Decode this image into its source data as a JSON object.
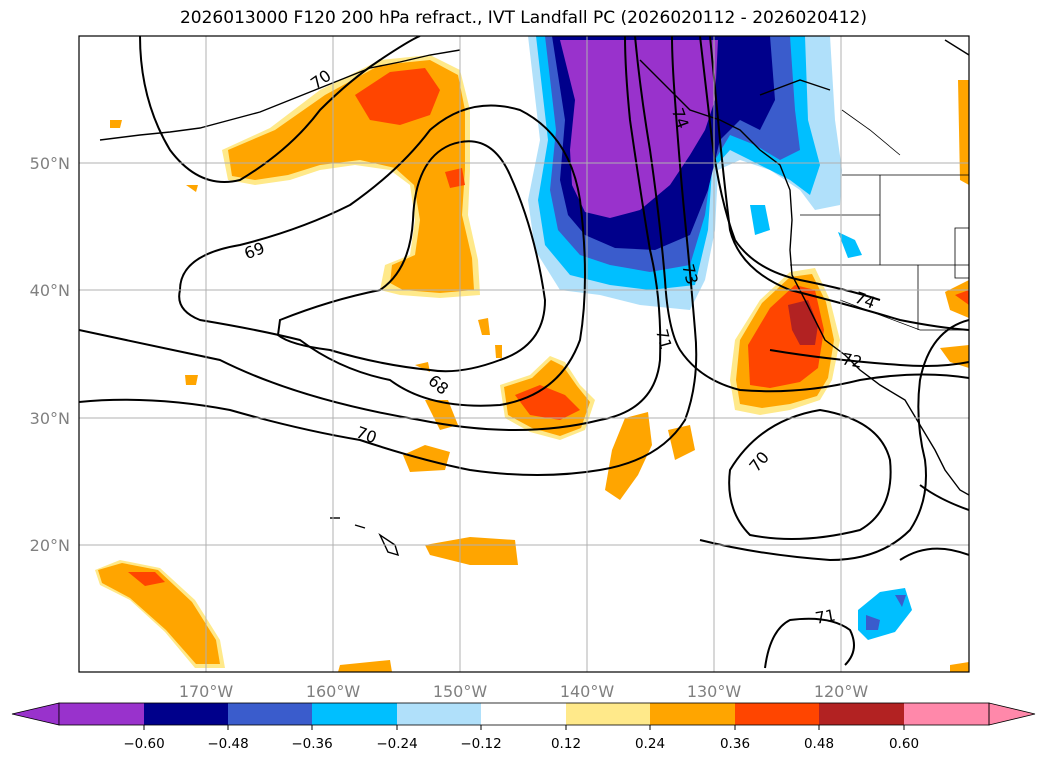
{
  "title": "2026013000 F120 200 hPa refract., IVT Landfall PC (2026020112 - 2026020412)",
  "map": {
    "lat_labels": [
      "50°N",
      "40°N",
      "30°N",
      "20°N"
    ],
    "lon_labels": [
      "170°W",
      "160°W",
      "150°W",
      "140°W",
      "130°W",
      "120°W"
    ],
    "gridlines": true
  },
  "contours": {
    "variable": "200 hPa refract.",
    "labels": [
      "70",
      "69",
      "68",
      "70",
      "71",
      "73",
      "74",
      "72",
      "70",
      "71",
      "74"
    ]
  },
  "colorbar": {
    "orientation": "horizontal",
    "extend": "both",
    "tick_labels": [
      "−0.60",
      "−0.48",
      "−0.36",
      "−0.24",
      "−0.12",
      "0.12",
      "0.24",
      "0.36",
      "0.48",
      "0.60"
    ],
    "colors": {
      "under": "#9932cc",
      "b1": "#00008b",
      "b2": "#3a5ccc",
      "b3": "#00bfff",
      "b4": "#b0e0fa",
      "b5": "#ffffff",
      "b6": "#ffe98a",
      "b7": "#ffa500",
      "b8": "#ff4500",
      "b9": "#b22222",
      "over": "#ff88aa"
    }
  }
}
